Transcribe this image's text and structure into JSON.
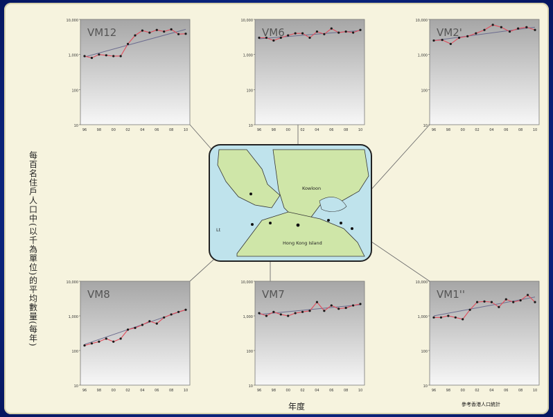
{
  "y_axis_label": "每百名住戶人口中(以千為單位)的平均數量(每年)",
  "x_axis_label": "年度",
  "credit": "參考香港人口統計",
  "map": {
    "labels": {
      "kowloon": "Kowloon",
      "hk_island": "Hong Kong Island",
      "lantau": "Lt"
    }
  },
  "chart_data": [
    {
      "type": "line",
      "title": "VM12",
      "ylog": true,
      "yticks": [
        "10,000",
        "1,000",
        "100",
        "10"
      ],
      "xticks": [
        "96",
        "98",
        "00",
        "02",
        "04",
        "06",
        "08",
        "10"
      ],
      "series": [
        {
          "values": [
            900,
            800,
            1000,
            950,
            900,
            900,
            2000,
            3500,
            4800,
            4200,
            5000,
            4500,
            5200,
            3800,
            3900
          ]
        },
        {
          "name": "trend",
          "values": [
            850,
            5200
          ]
        }
      ]
    },
    {
      "type": "line",
      "title": "VM6",
      "ylog": true,
      "yticks": [
        "10,000",
        "1,000",
        "100",
        "10"
      ],
      "xticks": [
        "96",
        "98",
        "00",
        "02",
        "04",
        "06",
        "08",
        "10"
      ],
      "series": [
        {
          "values": [
            3000,
            3000,
            2500,
            3000,
            3500,
            4000,
            4000,
            3000,
            4500,
            3800,
            5500,
            4200,
            4500,
            4200,
            5000
          ]
        },
        {
          "name": "trend",
          "values": [
            2800,
            4800
          ]
        }
      ]
    },
    {
      "type": "line",
      "title": "VM2'",
      "ylog": true,
      "yticks": [
        "10,000",
        "1,000",
        "100",
        "10"
      ],
      "xticks": [
        "96",
        "98",
        "00",
        "02",
        "04",
        "06",
        "08",
        "10"
      ],
      "series": [
        {
          "values": [
            2500,
            2600,
            2000,
            3000,
            3300,
            4000,
            5000,
            7000,
            6000,
            4500,
            5500,
            6000,
            5000
          ]
        },
        {
          "name": "trend",
          "values": [
            2500,
            6000
          ]
        }
      ]
    },
    {
      "type": "line",
      "title": "VM8",
      "ylog": true,
      "yticks": [
        "10,000",
        "1,000",
        "100",
        "10"
      ],
      "xticks": [
        "96",
        "98",
        "00",
        "02",
        "04",
        "06",
        "08",
        "10"
      ],
      "series": [
        {
          "values": [
            140,
            160,
            180,
            220,
            180,
            220,
            400,
            450,
            550,
            700,
            600,
            900,
            1100,
            1300,
            1500
          ]
        },
        {
          "name": "trend",
          "values": [
            150,
            1500
          ]
        }
      ]
    },
    {
      "type": "line",
      "title": "VM7",
      "ylog": true,
      "yticks": [
        "10,000",
        "1,000",
        "100",
        "10"
      ],
      "xticks": [
        "96",
        "98",
        "00",
        "02",
        "04",
        "06",
        "08",
        "10"
      ],
      "series": [
        {
          "values": [
            1200,
            1000,
            1300,
            1100,
            1000,
            1200,
            1300,
            1400,
            2500,
            1400,
            2000,
            1600,
            1700,
            2000,
            2200
          ]
        },
        {
          "name": "trend",
          "values": [
            1100,
            2100
          ]
        }
      ]
    },
    {
      "type": "line",
      "title": "VM1''",
      "ylog": true,
      "yticks": [
        "10,000",
        "1,000",
        "100",
        "10"
      ],
      "xticks": [
        "96",
        "98",
        "00",
        "02",
        "04",
        "06",
        "08",
        "10"
      ],
      "series": [
        {
          "values": [
            900,
            900,
            1000,
            900,
            800,
            1500,
            2500,
            2600,
            2500,
            1800,
            3000,
            2500,
            2800,
            4000,
            2500
          ]
        },
        {
          "name": "trend",
          "values": [
            1000,
            3500
          ]
        }
      ]
    }
  ]
}
